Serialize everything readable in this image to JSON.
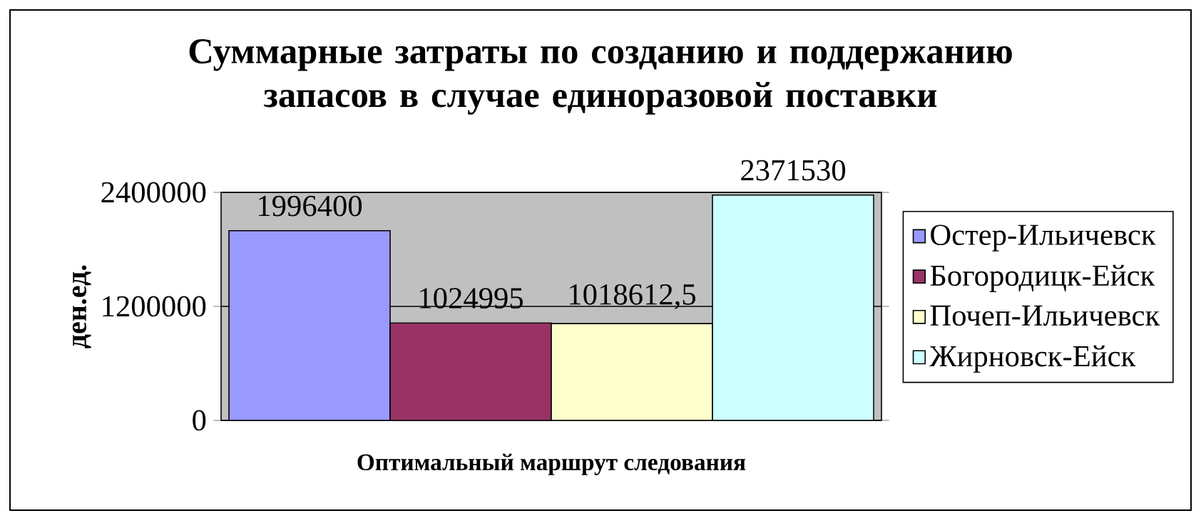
{
  "chart_data": {
    "type": "bar",
    "title": "Суммарные затраты по созданию и поддержанию запасов в случае единоразовой поставки",
    "xlabel": "Оптимальный маршрут следования",
    "ylabel": "ден.ед.",
    "categories": [
      null
    ],
    "series": [
      {
        "name": "Остер-Ильичевск",
        "color": "#9999ff",
        "values": [
          1996400
        ],
        "value_labels": [
          "1996400"
        ]
      },
      {
        "name": "Богородицк-Ейск",
        "color": "#993366",
        "values": [
          1024995
        ],
        "value_labels": [
          "1024995"
        ]
      },
      {
        "name": "Почеп-Ильичевск",
        "color": "#ffffcc",
        "values": [
          1018612.5
        ],
        "value_labels": [
          "1018612,5"
        ]
      },
      {
        "name": "Жирновск-Ейск",
        "color": "#ccffff",
        "values": [
          2371530
        ],
        "value_labels": [
          "2371530"
        ]
      }
    ],
    "ylim": [
      0,
      2400000
    ],
    "yticks": [
      0,
      1200000,
      2400000
    ],
    "grid": "y",
    "legend": "right"
  }
}
